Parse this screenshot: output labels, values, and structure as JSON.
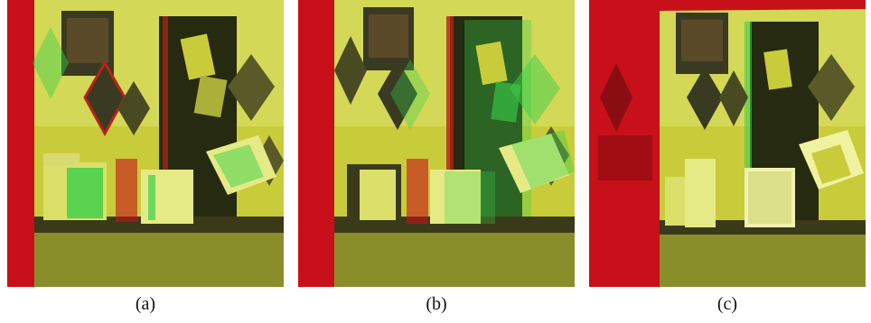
{
  "figure": {
    "panels": [
      {
        "id": "a",
        "caption": "(a)",
        "color_shift": 8
      },
      {
        "id": "b",
        "caption": "(b)",
        "color_shift": 14
      },
      {
        "id": "c",
        "caption": "(c)",
        "color_shift": 4
      }
    ],
    "palette": {
      "red_border": "#c8101a",
      "wall_yellow": "#c9cc3a",
      "wall_light": "#dbe06a",
      "dark_door": "#262a10",
      "desk_dark": "#3a3a1a",
      "green_ghost": "#3ad04a",
      "red_ghost": "#b8221a"
    }
  }
}
